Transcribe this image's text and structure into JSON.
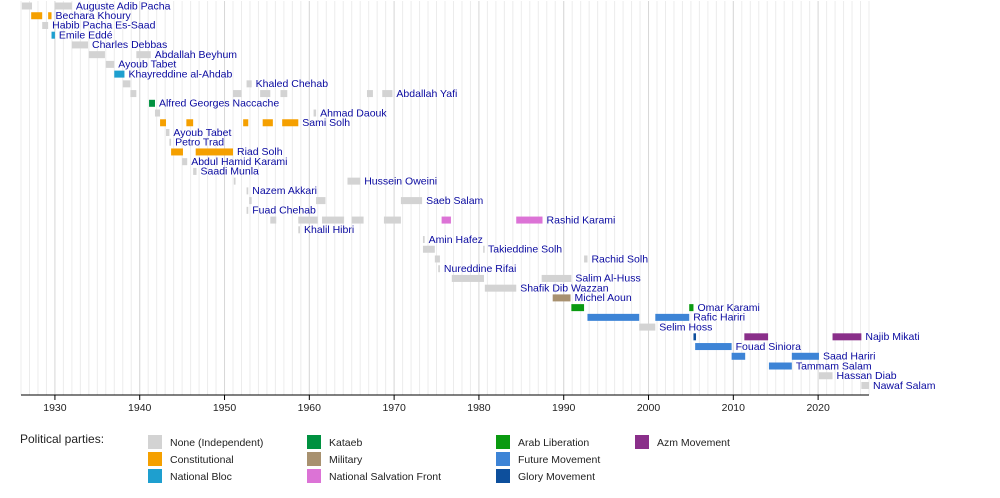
{
  "chart_data": {
    "type": "timeline",
    "xlim": [
      1926,
      2026
    ],
    "xticks": [
      1930,
      1940,
      1950,
      1960,
      1970,
      1980,
      1990,
      2000,
      2010,
      2020
    ],
    "grid": true,
    "legend_title": "Political parties:",
    "parties": [
      {
        "name": "None (Independent)",
        "color": "#d3d3d3"
      },
      {
        "name": "Constitutional",
        "color": "#f5a000"
      },
      {
        "name": "National Bloc",
        "color": "#1e9fcf"
      },
      {
        "name": "Kataeb",
        "color": "#009140"
      },
      {
        "name": "Military",
        "color": "#a8916f"
      },
      {
        "name": "National Salvation Front",
        "color": "#dc73d6"
      },
      {
        "name": "Arab Liberation",
        "color": "#0a9a10"
      },
      {
        "name": "Future Movement",
        "color": "#3d84d6"
      },
      {
        "name": "Glory Movement",
        "color": "#0d4f9c"
      },
      {
        "name": "Azm Movement",
        "color": "#8a2f8a"
      }
    ],
    "rows": [
      {
        "name": "Auguste Adib Pacha",
        "terms": [
          {
            "start": 1926.1,
            "end": 1927.3,
            "party": "None (Independent)"
          },
          {
            "start": 1930,
            "end": 1932,
            "party": "None (Independent)"
          }
        ]
      },
      {
        "name": "Bechara Khoury",
        "terms": [
          {
            "start": 1927.2,
            "end": 1928.5,
            "party": "Constitutional"
          },
          {
            "start": 1929.2,
            "end": 1929.6,
            "party": "Constitutional"
          }
        ]
      },
      {
        "name": "Habib Pacha Es-Saad",
        "terms": [
          {
            "start": 1928.5,
            "end": 1929.2,
            "party": "None (Independent)"
          }
        ]
      },
      {
        "name": "Emile Eddé",
        "terms": [
          {
            "start": 1929.6,
            "end": 1930,
            "party": "National Bloc"
          }
        ]
      },
      {
        "name": "Charles Debbas",
        "terms": [
          {
            "start": 1932,
            "end": 1933.9,
            "party": "None (Independent)"
          }
        ]
      },
      {
        "name": "Abdallah Beyhum",
        "terms": [
          {
            "start": 1934,
            "end": 1935.9,
            "party": "None (Independent)"
          },
          {
            "start": 1939.6,
            "end": 1941.3,
            "party": "None (Independent)"
          }
        ]
      },
      {
        "name": "Ayoub Tabet",
        "terms": [
          {
            "start": 1936,
            "end": 1937,
            "party": "None (Independent)"
          }
        ]
      },
      {
        "name": "Khayreddine al-Ahdab",
        "terms": [
          {
            "start": 1937,
            "end": 1938.2,
            "party": "National Bloc"
          }
        ]
      },
      {
        "name": "Khaled Chehab",
        "terms": [
          {
            "start": 1938,
            "end": 1938.9,
            "party": "None (Independent)"
          },
          {
            "start": 1952.6,
            "end": 1953.2,
            "party": "None (Independent)"
          }
        ]
      },
      {
        "name": "Abdallah Yafi",
        "terms": [
          {
            "start": 1938.9,
            "end": 1939.6,
            "party": "None (Independent)"
          },
          {
            "start": 1951,
            "end": 1952,
            "party": "None (Independent)"
          },
          {
            "start": 1954.2,
            "end": 1955.4,
            "party": "None (Independent)"
          },
          {
            "start": 1956.6,
            "end": 1957.4,
            "party": "None (Independent)"
          },
          {
            "start": 1966.8,
            "end": 1967.5,
            "party": "None (Independent)"
          },
          {
            "start": 1968.6,
            "end": 1969.8,
            "party": "None (Independent)"
          }
        ]
      },
      {
        "name": "Alfred Georges Naccache",
        "terms": [
          {
            "start": 1941.1,
            "end": 1941.8,
            "party": "Kataeb"
          }
        ]
      },
      {
        "name": "Ahmad Daouk",
        "terms": [
          {
            "start": 1941.8,
            "end": 1942.4,
            "party": "None (Independent)"
          },
          {
            "start": 1960.5,
            "end": 1960.8,
            "party": "None (Independent)"
          }
        ]
      },
      {
        "name": "Sami Solh",
        "terms": [
          {
            "start": 1942.4,
            "end": 1943.1,
            "party": "Constitutional"
          },
          {
            "start": 1945.5,
            "end": 1946.3,
            "party": "Constitutional"
          },
          {
            "start": 1952.2,
            "end": 1952.8,
            "party": "Constitutional"
          },
          {
            "start": 1954.5,
            "end": 1955.7,
            "party": "Constitutional"
          },
          {
            "start": 1956.8,
            "end": 1958.7,
            "party": "Constitutional"
          }
        ]
      },
      {
        "name": "Ayoub Tabet",
        "terms": [
          {
            "start": 1943.1,
            "end": 1943.5,
            "party": "None (Independent)"
          }
        ]
      },
      {
        "name": "Petro Trad",
        "terms": [
          {
            "start": 1943.5,
            "end": 1943.7,
            "party": "None (Independent)"
          }
        ]
      },
      {
        "name": "Riad Solh",
        "terms": [
          {
            "start": 1943.7,
            "end": 1945.1,
            "party": "Constitutional"
          },
          {
            "start": 1946.6,
            "end": 1951,
            "party": "Constitutional"
          }
        ]
      },
      {
        "name": "Abdul Hamid Karami",
        "terms": [
          {
            "start": 1945,
            "end": 1945.6,
            "party": "None (Independent)"
          }
        ]
      },
      {
        "name": "Saadi Munla",
        "terms": [
          {
            "start": 1946.3,
            "end": 1946.7,
            "party": "None (Independent)"
          }
        ]
      },
      {
        "name": "Hussein Oweini",
        "terms": [
          {
            "start": 1951.1,
            "end": 1951.3,
            "party": "None (Independent)"
          },
          {
            "start": 1964.5,
            "end": 1966,
            "party": "None (Independent)"
          }
        ]
      },
      {
        "name": "Nazem Akkari",
        "terms": [
          {
            "start": 1952.6,
            "end": 1952.8,
            "party": "None (Independent)"
          }
        ]
      },
      {
        "name": "Saeb Salam",
        "terms": [
          {
            "start": 1952.9,
            "end": 1953.2,
            "party": "None (Independent)"
          },
          {
            "start": 1960.8,
            "end": 1961.9,
            "party": "None (Independent)"
          },
          {
            "start": 1970.8,
            "end": 1973.3,
            "party": "None (Independent)"
          }
        ]
      },
      {
        "name": "Fuad Chehab",
        "terms": [
          {
            "start": 1952.6,
            "end": 1952.8,
            "party": "None (Independent)"
          }
        ]
      },
      {
        "name": "Rashid Karami",
        "terms": [
          {
            "start": 1955.4,
            "end": 1956.1,
            "party": "None (Independent)"
          },
          {
            "start": 1958.7,
            "end": 1961,
            "party": "None (Independent)"
          },
          {
            "start": 1961.5,
            "end": 1964.1,
            "party": "None (Independent)"
          },
          {
            "start": 1965,
            "end": 1966.4,
            "party": "None (Independent)"
          },
          {
            "start": 1968.8,
            "end": 1970.8,
            "party": "None (Independent)"
          },
          {
            "start": 1975.6,
            "end": 1976.7,
            "party": "National Salvation Front"
          },
          {
            "start": 1984.4,
            "end": 1987.5,
            "party": "National Salvation Front"
          }
        ]
      },
      {
        "name": "Khalil Hibri",
        "terms": [
          {
            "start": 1958.7,
            "end": 1958.9,
            "party": "None (Independent)"
          }
        ]
      },
      {
        "name": "Amin Hafez",
        "terms": [
          {
            "start": 1973.4,
            "end": 1973.6,
            "party": "None (Independent)"
          }
        ]
      },
      {
        "name": "Takieddine Solh",
        "terms": [
          {
            "start": 1973.4,
            "end": 1974.8,
            "party": "None (Independent)"
          },
          {
            "start": 1980.5,
            "end": 1980.6,
            "party": "None (Independent)"
          }
        ]
      },
      {
        "name": "Rachid Solh",
        "terms": [
          {
            "start": 1974.8,
            "end": 1975.4,
            "party": "None (Independent)"
          },
          {
            "start": 1992.4,
            "end": 1992.8,
            "party": "None (Independent)"
          }
        ]
      },
      {
        "name": "Nureddine Rifai",
        "terms": [
          {
            "start": 1975.2,
            "end": 1975.4,
            "party": "None (Independent)"
          }
        ]
      },
      {
        "name": "Salim Al-Huss",
        "terms": [
          {
            "start": 1976.8,
            "end": 1980.6,
            "party": "None (Independent)"
          },
          {
            "start": 1987.4,
            "end": 1990.9,
            "party": "None (Independent)"
          }
        ]
      },
      {
        "name": "Shafik Dib Wazzan",
        "terms": [
          {
            "start": 1980.7,
            "end": 1984.4,
            "party": "None (Independent)"
          }
        ]
      },
      {
        "name": "Michel Aoun",
        "terms": [
          {
            "start": 1988.7,
            "end": 1990.8,
            "party": "Military"
          }
        ]
      },
      {
        "name": "Omar Karami",
        "terms": [
          {
            "start": 1990.9,
            "end": 1992.4,
            "party": "Arab Liberation"
          },
          {
            "start": 2004.8,
            "end": 2005.3,
            "party": "Arab Liberation"
          }
        ]
      },
      {
        "name": "Rafic Hariri",
        "terms": [
          {
            "start": 1992.8,
            "end": 1998.9,
            "party": "Future Movement"
          },
          {
            "start": 2000.8,
            "end": 2004.8,
            "party": "Future Movement"
          }
        ]
      },
      {
        "name": "Selim Hoss",
        "terms": [
          {
            "start": 1998.9,
            "end": 2000.8,
            "party": "None (Independent)"
          }
        ]
      },
      {
        "name": "Najib Mikati",
        "terms": [
          {
            "start": 2005.3,
            "end": 2005.6,
            "party": "Glory Movement"
          },
          {
            "start": 2011.3,
            "end": 2014.1,
            "party": "Azm Movement"
          },
          {
            "start": 2021.7,
            "end": 2025.1,
            "party": "Azm Movement"
          }
        ]
      },
      {
        "name": "Fouad Siniora",
        "terms": [
          {
            "start": 2005.5,
            "end": 2009.8,
            "party": "Future Movement"
          }
        ]
      },
      {
        "name": "Saad Hariri",
        "terms": [
          {
            "start": 2009.8,
            "end": 2011.4,
            "party": "Future Movement"
          },
          {
            "start": 2016.9,
            "end": 2020.1,
            "party": "Future Movement"
          }
        ]
      },
      {
        "name": "Tammam Salam",
        "terms": [
          {
            "start": 2014.2,
            "end": 2016.9,
            "party": "Future Movement"
          }
        ]
      },
      {
        "name": "Hassan Diab",
        "terms": [
          {
            "start": 2020.1,
            "end": 2021.7,
            "party": "None (Independent)"
          }
        ]
      },
      {
        "name": "Nawaf Salam",
        "terms": [
          {
            "start": 2025.1,
            "end": 2026,
            "party": "None (Independent)"
          }
        ]
      }
    ]
  }
}
